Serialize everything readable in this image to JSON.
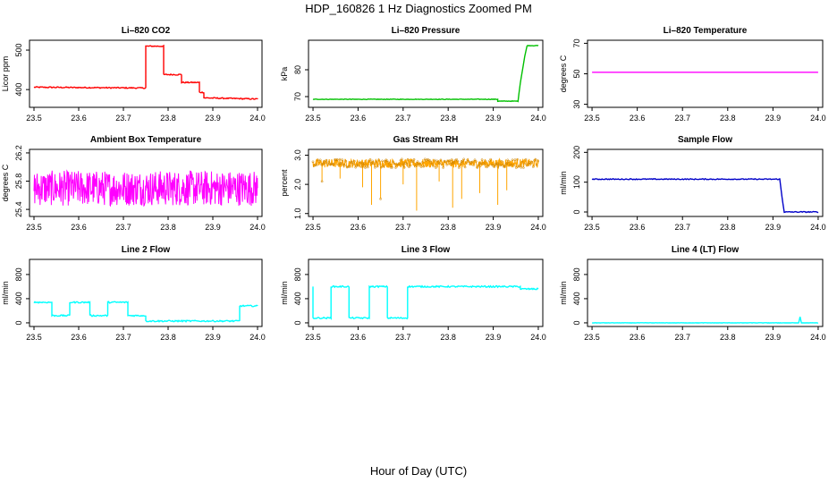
{
  "figure": {
    "title": "HDP_160826  1 Hz Diagnostics Zoomed PM",
    "xlabel": "Hour of Day (UTC)"
  },
  "chart_data": [
    {
      "type": "line",
      "title": "Li–820 CO2",
      "ylabel": "Licor ppm",
      "xlim": [
        23.49,
        24.01
      ],
      "ylim": [
        355,
        525
      ],
      "xticks": [
        "23.5",
        "23.6",
        "23.7",
        "23.8",
        "23.9",
        "24.0"
      ],
      "yticks": [
        "400",
        "500"
      ],
      "color": "#ff0000",
      "noise": 1.5,
      "series": [
        {
          "x": [
            23.5,
            23.75,
            23.75,
            23.79,
            23.79,
            23.83,
            23.83,
            23.87,
            23.87,
            23.88,
            23.88,
            24.0
          ],
          "y": [
            406,
            404,
            510,
            510,
            438,
            438,
            418,
            418,
            393,
            393,
            379,
            376
          ]
        }
      ]
    },
    {
      "type": "line",
      "title": "Li–820 Pressure",
      "ylabel": "kPa",
      "xlim": [
        23.49,
        24.01
      ],
      "ylim": [
        66,
        91
      ],
      "xticks": [
        "23.5",
        "23.6",
        "23.7",
        "23.8",
        "23.9",
        "24.0"
      ],
      "yticks": [
        "70",
        "80"
      ],
      "color": "#00c000",
      "noise": 0.1,
      "series": [
        {
          "x": [
            23.5,
            23.91,
            23.91,
            23.955,
            23.96,
            23.97,
            23.975,
            24.0
          ],
          "y": [
            69.0,
            69.0,
            68.3,
            68.3,
            75,
            85,
            89,
            89
          ]
        }
      ]
    },
    {
      "type": "line",
      "title": "Li–820 Temperature",
      "ylabel": "degrees C",
      "xlim": [
        23.49,
        24.01
      ],
      "ylim": [
        28,
        72
      ],
      "xticks": [
        "23.5",
        "23.6",
        "23.7",
        "23.8",
        "23.9",
        "24.0"
      ],
      "yticks": [
        "30",
        "50",
        "70"
      ],
      "color": "#ff00ff",
      "noise": 0,
      "series": [
        {
          "x": [
            23.5,
            24.0
          ],
          "y": [
            51,
            51
          ]
        }
      ]
    },
    {
      "type": "line",
      "title": "Ambient Box Temperature",
      "ylabel": "degrees C",
      "xlim": [
        23.49,
        24.01
      ],
      "ylim": [
        25.3,
        26.25
      ],
      "xticks": [
        "23.5",
        "23.6",
        "23.7",
        "23.8",
        "23.9",
        "24.0"
      ],
      "yticks": [
        "25.4",
        "25.8",
        "26.2"
      ],
      "color": "#ff00ff",
      "noise": 0.25,
      "dense": true,
      "series": [
        {
          "x": [
            23.5,
            24.0
          ],
          "y": [
            25.7,
            25.7
          ]
        }
      ]
    },
    {
      "type": "line",
      "title": "Gas Stream RH",
      "ylabel": "percent",
      "xlim": [
        23.49,
        24.01
      ],
      "ylim": [
        0.9,
        3.2
      ],
      "xticks": [
        "23.5",
        "23.6",
        "23.7",
        "23.8",
        "23.9",
        "24.0"
      ],
      "yticks": [
        "1.0",
        "2.0",
        "3.0"
      ],
      "color": "#ffa500",
      "noise": 0.15,
      "dense": true,
      "points": true,
      "series": [
        {
          "x": [
            23.5,
            24.0
          ],
          "y": [
            2.72,
            2.72
          ]
        }
      ],
      "spikes": [
        [
          23.52,
          2.1
        ],
        [
          23.56,
          2.2
        ],
        [
          23.61,
          1.9
        ],
        [
          23.63,
          1.3
        ],
        [
          23.65,
          1.5
        ],
        [
          23.7,
          2.0
        ],
        [
          23.73,
          1.1
        ],
        [
          23.78,
          2.1
        ],
        [
          23.81,
          1.2
        ],
        [
          23.83,
          1.5
        ],
        [
          23.87,
          1.7
        ],
        [
          23.91,
          1.3
        ],
        [
          23.93,
          1.8
        ]
      ]
    },
    {
      "type": "line",
      "title": "Sample Flow",
      "ylabel": "ml/min",
      "xlim": [
        23.49,
        24.01
      ],
      "ylim": [
        -15,
        210
      ],
      "xticks": [
        "23.5",
        "23.6",
        "23.7",
        "23.8",
        "23.9",
        "24.0"
      ],
      "yticks": [
        "0",
        "100",
        "200"
      ],
      "color": "#0000c8",
      "noise": 1.5,
      "series": [
        {
          "x": [
            23.5,
            23.915,
            23.92,
            23.925,
            24.0
          ],
          "y": [
            110,
            110,
            50,
            0,
            0
          ]
        }
      ]
    },
    {
      "type": "line",
      "title": "Line 2 Flow",
      "ylabel": "ml/min",
      "xlim": [
        23.49,
        24.01
      ],
      "ylim": [
        -60,
        1050
      ],
      "xticks": [
        "23.5",
        "23.6",
        "23.7",
        "23.8",
        "23.9",
        "24.0"
      ],
      "yticks": [
        "0",
        "400",
        "800"
      ],
      "color": "#00ffff",
      "noise": 12,
      "series": [
        {
          "x": [
            23.5,
            23.54,
            23.54,
            23.58,
            23.58,
            23.625,
            23.625,
            23.665,
            23.665,
            23.71,
            23.71,
            23.75,
            23.75,
            23.96,
            23.96,
            24.0
          ],
          "y": [
            340,
            340,
            120,
            120,
            340,
            340,
            120,
            120,
            340,
            340,
            120,
            120,
            30,
            30,
            280,
            280
          ]
        }
      ]
    },
    {
      "type": "line",
      "title": "Line 3 Flow",
      "ylabel": "ml/min",
      "xlim": [
        23.49,
        24.01
      ],
      "ylim": [
        -60,
        1050
      ],
      "xticks": [
        "23.5",
        "23.6",
        "23.7",
        "23.8",
        "23.9",
        "24.0"
      ],
      "yticks": [
        "0",
        "400",
        "800"
      ],
      "color": "#00ffff",
      "noise": 12,
      "series": [
        {
          "x": [
            23.5,
            23.5,
            23.54,
            23.54,
            23.58,
            23.58,
            23.625,
            23.625,
            23.665,
            23.665,
            23.71,
            23.71,
            23.96,
            23.96,
            24.0
          ],
          "y": [
            600,
            80,
            80,
            600,
            600,
            80,
            80,
            600,
            600,
            80,
            80,
            600,
            600,
            560,
            560
          ]
        }
      ]
    },
    {
      "type": "line",
      "title": "Line 4 (LT) Flow",
      "ylabel": "ml/min",
      "xlim": [
        23.49,
        24.01
      ],
      "ylim": [
        -60,
        1050
      ],
      "xticks": [
        "23.5",
        "23.6",
        "23.7",
        "23.8",
        "23.9",
        "24.0"
      ],
      "yticks": [
        "0",
        "400",
        "800"
      ],
      "color": "#00ffff",
      "noise": 3,
      "series": [
        {
          "x": [
            23.5,
            23.957,
            23.96,
            23.963,
            24.0
          ],
          "y": [
            0,
            0,
            100,
            0,
            0
          ]
        }
      ]
    }
  ]
}
